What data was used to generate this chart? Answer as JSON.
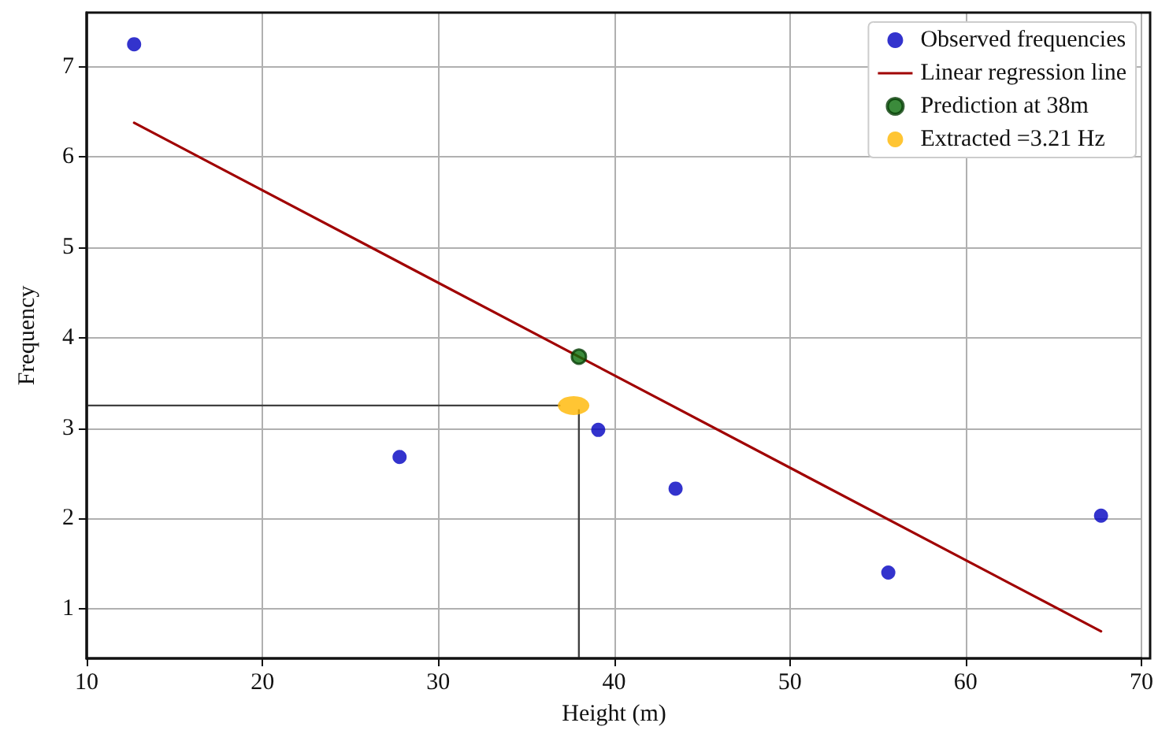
{
  "chart_data": {
    "type": "scatter",
    "xlabel": "Height (m)",
    "ylabel": "Frequency",
    "xlim": [
      10,
      70
    ],
    "ylim": [
      0.45,
      7.6
    ],
    "xticks": [
      10,
      20,
      30,
      40,
      50,
      60,
      70
    ],
    "yticks": [
      1,
      2,
      3,
      4,
      5,
      6,
      7
    ],
    "grid": true,
    "legend": "top right",
    "marker": "circle",
    "series": [
      {
        "name": "Observed frequencies",
        "color": "#0000c0",
        "x": [
          12.7,
          27.8,
          39.1,
          43.5,
          55.6,
          67.7
        ],
        "values": [
          7.25,
          2.68,
          2.98,
          2.33,
          1.4,
          2.03
        ]
      },
      {
        "name": "Linear regression line",
        "type": "line",
        "marker": "none",
        "color": "#a00000",
        "x": [
          12.7,
          67.7
        ],
        "values": [
          6.38,
          0.75
        ]
      },
      {
        "name": "Prediction at 38m",
        "color": "#0a6e0a",
        "x": [
          38
        ],
        "values": [
          3.79
        ]
      },
      {
        "name": "Extracted =3.21 Hz",
        "color": "#ffb700",
        "x": [
          37.7
        ],
        "values": [
          3.25
        ]
      },
      {
        "type": "line",
        "marker": "none",
        "color": "#404040",
        "x": [
          10,
          36.9
        ],
        "values": [
          3.25,
          3.25
        ]
      },
      {
        "type": "line",
        "marker": "none",
        "color": "#404040",
        "x": [
          38,
          38
        ],
        "values": [
          0.45,
          3.2
        ]
      }
    ]
  }
}
